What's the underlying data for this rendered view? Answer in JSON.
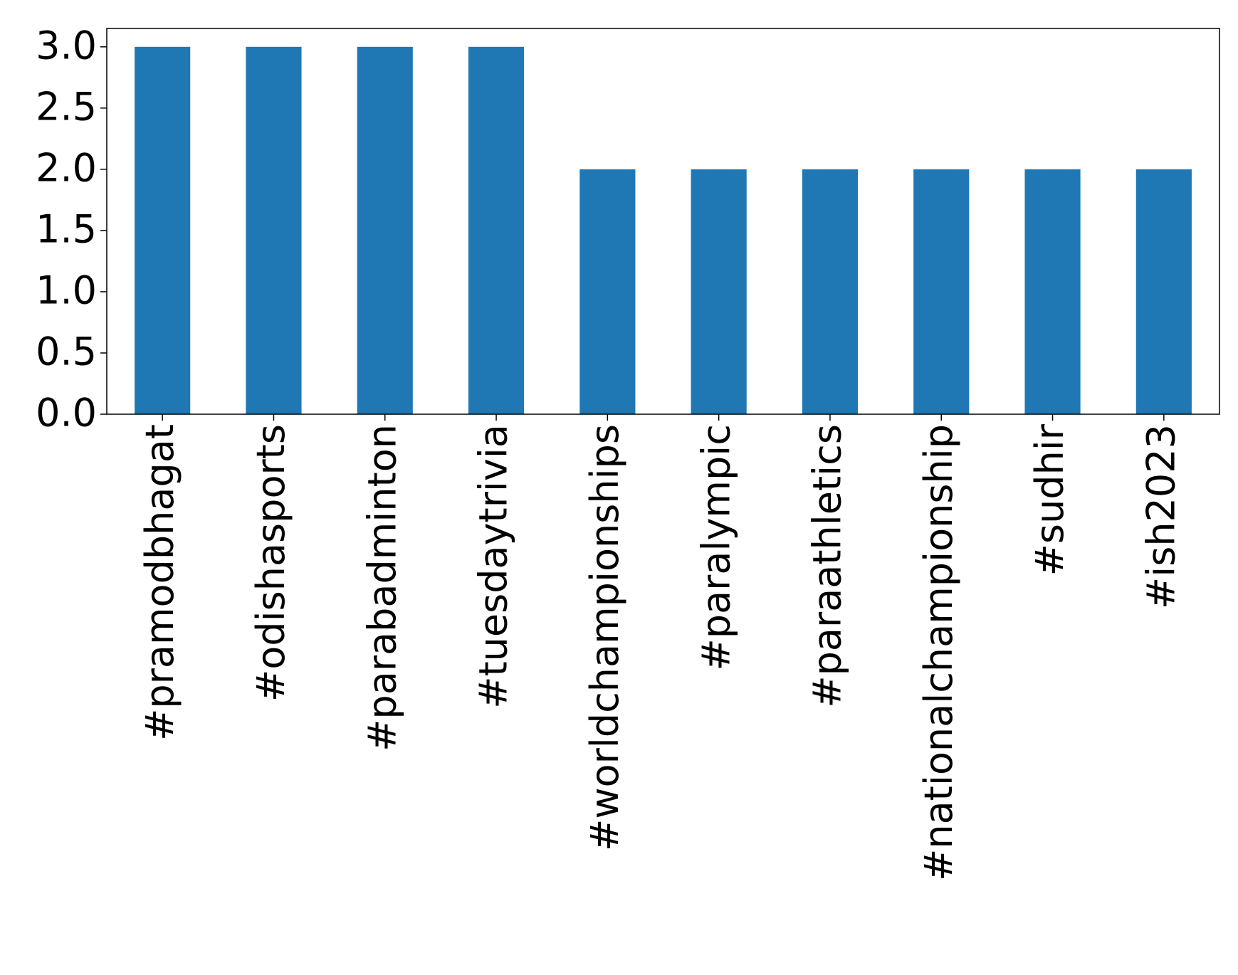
{
  "chart_data": {
    "type": "bar",
    "categories": [
      "#pramodbhagat",
      "#odishasports",
      "#parabadminton",
      "#tuesdaytrivia",
      "#worldchampionships",
      "#paralympic",
      "#paraathletics",
      "#nationalchampionship",
      "#sudhir",
      "#ish2023"
    ],
    "values": [
      3,
      3,
      3,
      3,
      2,
      2,
      2,
      2,
      2,
      2
    ],
    "color": "#1f77b4",
    "ylim": [
      0,
      3.15
    ],
    "yticks": [
      {
        "value": 0,
        "label": "0.0"
      },
      {
        "value": 0.5,
        "label": "0.5"
      },
      {
        "value": 1,
        "label": "1.0"
      },
      {
        "value": 1.5,
        "label": "1.5"
      },
      {
        "value": 2,
        "label": "2.0"
      },
      {
        "value": 2.5,
        "label": "2.5"
      },
      {
        "value": 3,
        "label": "3.0"
      }
    ],
    "grid": false
  }
}
